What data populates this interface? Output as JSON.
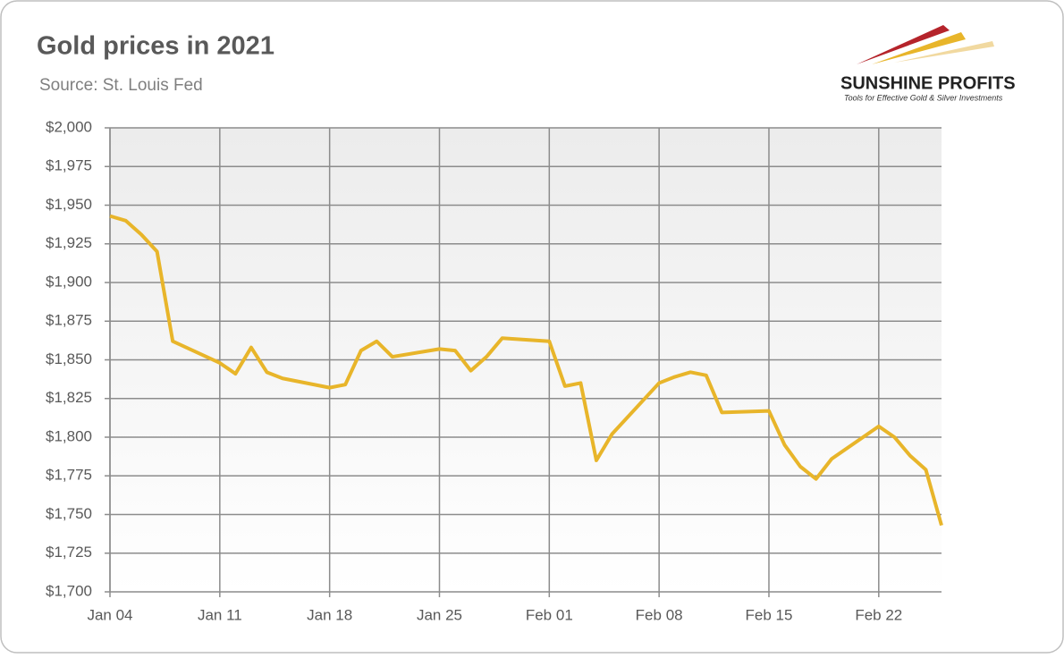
{
  "chart_data": {
    "type": "line",
    "title": "Gold prices in 2021",
    "subtitle": "Source: St. Louis Fed",
    "logo": {
      "name": "SUNSHINE PROFITS",
      "tagline": "Tools for Effective Gold & Silver Investments"
    },
    "x": [
      4,
      5,
      6,
      7,
      8,
      11,
      12,
      13,
      14,
      15,
      18,
      19,
      20,
      21,
      22,
      25,
      26,
      27,
      28,
      29,
      32,
      33,
      34,
      35,
      36,
      39,
      40,
      41,
      42,
      43,
      46,
      47,
      48,
      49,
      50,
      53,
      54,
      55,
      56,
      57
    ],
    "series": [
      {
        "name": "Gold price",
        "color": "#e8b52a",
        "values": [
          1943,
          1940,
          1931,
          1920,
          1862,
          1848,
          1841,
          1858,
          1842,
          1838,
          1832,
          1834,
          1856,
          1862,
          1852,
          1857,
          1856,
          1843,
          1852,
          1864,
          1862,
          1833,
          1835,
          1785,
          1802,
          1835,
          1839,
          1842,
          1840,
          1816,
          1817,
          1795,
          1781,
          1773,
          1786,
          1807,
          1800,
          1788,
          1779,
          1743
        ]
      }
    ],
    "xlim": [
      4,
      57
    ],
    "xticks": [
      {
        "value": 4,
        "label": "Jan 04"
      },
      {
        "value": 11,
        "label": "Jan 11"
      },
      {
        "value": 18,
        "label": "Jan 18"
      },
      {
        "value": 25,
        "label": "Jan 25"
      },
      {
        "value": 32,
        "label": "Feb 01"
      },
      {
        "value": 39,
        "label": "Feb 08"
      },
      {
        "value": 46,
        "label": "Feb 15"
      },
      {
        "value": 53,
        "label": "Feb 22"
      }
    ],
    "ylim": [
      1700,
      2000
    ],
    "yticks": [
      {
        "value": 1700,
        "label": "$1,700"
      },
      {
        "value": 1725,
        "label": "$1,725"
      },
      {
        "value": 1750,
        "label": "$1,750"
      },
      {
        "value": 1775,
        "label": "$1,775"
      },
      {
        "value": 1800,
        "label": "$1,800"
      },
      {
        "value": 1825,
        "label": "$1,825"
      },
      {
        "value": 1850,
        "label": "$1,850"
      },
      {
        "value": 1875,
        "label": "$1,875"
      },
      {
        "value": 1900,
        "label": "$1,900"
      },
      {
        "value": 1925,
        "label": "$1,925"
      },
      {
        "value": 1950,
        "label": "$1,950"
      },
      {
        "value": 1975,
        "label": "$1,975"
      },
      {
        "value": 2000,
        "label": "$2,000"
      }
    ],
    "grid": true
  }
}
